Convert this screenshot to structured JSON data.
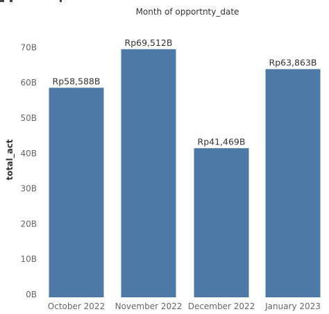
{
  "chart_data": {
    "type": "bar",
    "title": "Month of opportnty_date",
    "xlabel": "",
    "ylabel": "total_act",
    "categories": [
      "October 2022",
      "November 2022",
      "December 2022",
      "January 2023"
    ],
    "values": [
      58.588,
      69.512,
      41.469,
      63.863
    ],
    "value_units": "billions (B)",
    "data_labels": [
      "Rp58,588B",
      "Rp69,512B",
      "Rp41,469B",
      "Rp63,863B"
    ],
    "yticks": [
      "0B",
      "10B",
      "20B",
      "30B",
      "40B",
      "50B",
      "60B",
      "70B"
    ],
    "ytick_values": [
      0,
      10,
      20,
      30,
      40,
      50,
      60,
      70
    ],
    "ylim": [
      0,
      74
    ],
    "grid": false,
    "legend": "none",
    "bar_color": "#4E79A7"
  }
}
